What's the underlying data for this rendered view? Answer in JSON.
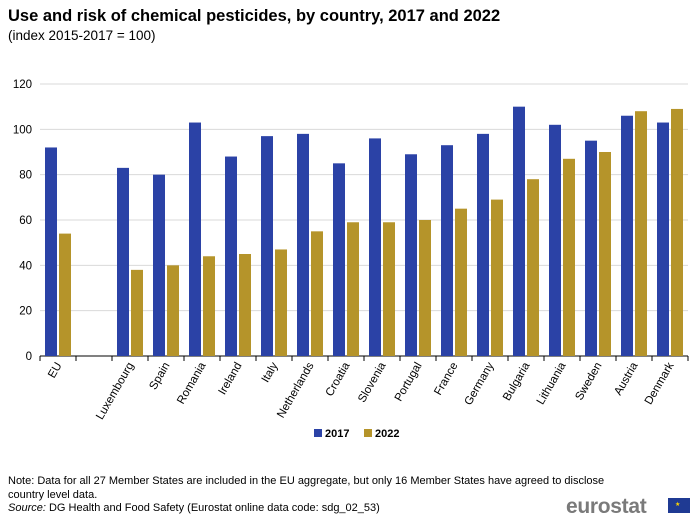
{
  "title": "Use and risk of chemical pesticides, by country, 2017 and 2022",
  "subtitle": "(index 2015-2017 = 100)",
  "note": "Note: Data for all 27 Member States are included in the EU aggregate, but only 16 Member States have agreed to disclose country level data.",
  "source_label": "Source:",
  "source_text": "DG Health and Food Safety (Eurostat online data code: sdg_02_53)",
  "logo": "eurostat",
  "colors": {
    "s2017": "#2b42a6",
    "s2022": "#b5942a",
    "grid": "#d9d9d9"
  },
  "chart_data": {
    "type": "bar",
    "title": "Use and risk of chemical pesticides, by country, 2017 and 2022",
    "ylabel": "",
    "xlabel": "",
    "ylim": [
      0,
      120
    ],
    "yticks": [
      0,
      20,
      40,
      60,
      80,
      100,
      120
    ],
    "categories": [
      "EU",
      "",
      "Luxembourg",
      "Spain",
      "Romania",
      "Ireland",
      "Italy",
      "Netherlands",
      "Croatia",
      "Slovenia",
      "Portugal",
      "France",
      "Germany",
      "Bulgaria",
      "Lithuania",
      "Sweden",
      "Austria",
      "Denmark"
    ],
    "series": [
      {
        "name": "2017",
        "values": [
          92,
          null,
          83,
          80,
          103,
          88,
          97,
          98,
          85,
          96,
          89,
          93,
          98,
          110,
          102,
          95,
          106,
          103
        ]
      },
      {
        "name": "2022",
        "values": [
          54,
          null,
          38,
          40,
          44,
          45,
          47,
          55,
          59,
          59,
          60,
          65,
          69,
          78,
          87,
          90,
          108,
          109
        ]
      }
    ],
    "legend": "bottom-center",
    "grid": true
  }
}
